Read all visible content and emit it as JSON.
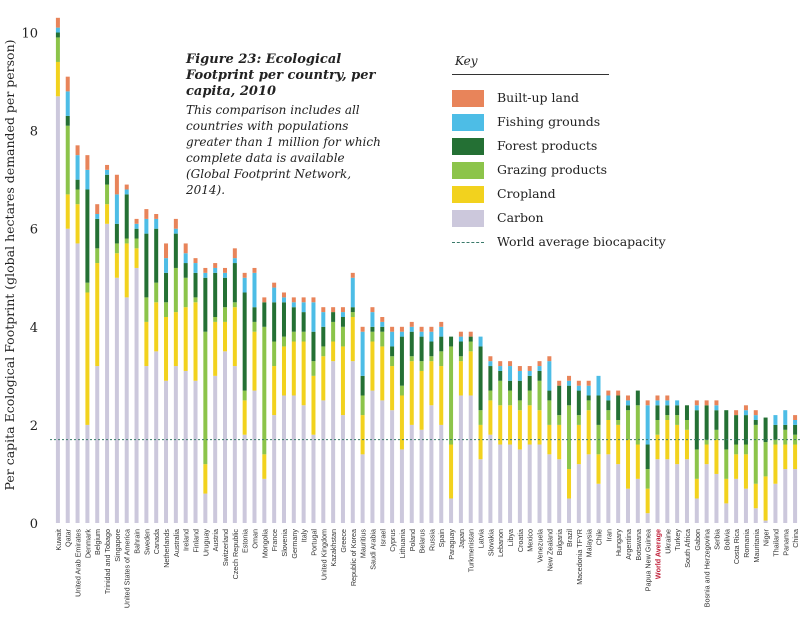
{
  "figure": {
    "title": "Figure 23: Ecological Footprint per country, per capita, 2010",
    "description": "This comparison includes all countries with populations greater than 1 million for which complete data is available (Global Footprint Network, 2014)."
  },
  "key": {
    "title": "Key",
    "items": [
      {
        "label": "Built-up land",
        "color": "#e8845a"
      },
      {
        "label": "Fishing grounds",
        "color": "#4dbde6"
      },
      {
        "label": "Forest products",
        "color": "#247034"
      },
      {
        "label": "Grazing products",
        "color": "#8cc44a"
      },
      {
        "label": "Cropland",
        "color": "#f2d21e"
      },
      {
        "label": "Carbon",
        "color": "#ccc8dc"
      }
    ],
    "line_label": "World average biocapacity",
    "line_color": "#3a7a6a"
  },
  "chart_data": {
    "type": "bar",
    "stacked": true,
    "ylabel": "Per capita Ecological Footprint (global hectares demanded per person)",
    "ylim": [
      0,
      10.5
    ],
    "yticks": [
      0,
      2,
      4,
      6,
      8,
      10
    ],
    "reference_line": {
      "label": "World average biocapacity",
      "value": 1.7
    },
    "highlight_category": "World Average",
    "highlight_color": "#c0203a",
    "categories": [
      "Kuwait",
      "Qatar",
      "United Arab Emirates",
      "Denmark",
      "Belgium",
      "Trinidad and Tobago",
      "Singapore",
      "United States of America",
      "Bahrain",
      "Sweden",
      "Canada",
      "Netherlands",
      "Australia",
      "Ireland",
      "Finland",
      "Uruguay",
      "Austria",
      "Switzerland",
      "Czech Republic",
      "Estonia",
      "Oman",
      "Mongolia",
      "France",
      "Slovenia",
      "Germany",
      "Italy",
      "Portugal",
      "United Kingdom",
      "Kazakhstan",
      "Greece",
      "Republic of Korea",
      "Mauritius",
      "Saudi Arabia",
      "Israel",
      "Cyprus",
      "Lithuania",
      "Poland",
      "Belarus",
      "Russia",
      "Spain",
      "Paraguay",
      "Japan",
      "Turkmenistan",
      "Latvia",
      "Slovakia",
      "Lebanon",
      "Libya",
      "Croatia",
      "Mexico",
      "Venezuela",
      "New Zealand",
      "Bulgaria",
      "Brazil",
      "Macedonia TFYR",
      "Malaysia",
      "Chile",
      "Iran",
      "Hungary",
      "Argentina",
      "Botswana",
      "Papua New Guinea",
      "World Average",
      "Ukraine",
      "Turkey",
      "South Africa",
      "Gabon",
      "Bosnia and Herzegovina",
      "Serbia",
      "Bolivia",
      "Costa Rica",
      "Romania",
      "Mauritania",
      "Niger",
      "Thailand",
      "Panama",
      "China"
    ],
    "series": [
      {
        "name": "Carbon",
        "values": [
          8.7,
          6.0,
          5.7,
          2.0,
          3.2,
          6.1,
          5.0,
          4.6,
          5.2,
          3.2,
          3.5,
          2.9,
          3.2,
          3.1,
          2.9,
          0.6,
          3.0,
          3.5,
          3.2,
          1.8,
          2.7,
          0.9,
          2.2,
          2.6,
          2.6,
          2.4,
          1.8,
          2.5,
          3.3,
          2.2,
          3.3,
          1.4,
          2.7,
          2.5,
          2.3,
          1.5,
          2.0,
          1.9,
          2.4,
          2.0,
          0.5,
          2.6,
          2.6,
          1.3,
          1.8,
          1.6,
          1.6,
          1.5,
          1.6,
          1.6,
          1.4,
          1.3,
          0.5,
          1.2,
          1.4,
          0.8,
          1.4,
          1.2,
          0.7,
          0.9,
          0.2,
          1.3,
          1.3,
          1.2,
          1.3,
          0.5,
          1.2,
          1.0,
          0.4,
          0.9,
          0.7,
          0.3,
          0.05,
          0.8,
          1.1,
          1.1
        ]
      },
      {
        "name": "Cropland",
        "values": [
          0.7,
          0.7,
          0.8,
          2.7,
          2.1,
          0.4,
          0.5,
          1.1,
          0.4,
          0.9,
          1.0,
          1.3,
          1.1,
          1.3,
          1.6,
          0.6,
          1.1,
          0.6,
          1.2,
          0.7,
          1.2,
          0.5,
          1.0,
          1.0,
          1.1,
          1.3,
          1.2,
          0.9,
          0.4,
          1.4,
          0.9,
          0.8,
          1.0,
          1.1,
          0.9,
          1.1,
          1.3,
          1.2,
          0.9,
          1.2,
          1.1,
          0.7,
          0.9,
          0.7,
          0.7,
          0.8,
          0.8,
          0.8,
          0.8,
          0.7,
          0.6,
          0.7,
          0.6,
          0.8,
          0.9,
          0.6,
          0.7,
          0.8,
          1.0,
          0.7,
          0.5,
          0.5,
          0.8,
          0.8,
          0.6,
          0.4,
          0.4,
          0.7,
          0.5,
          0.5,
          0.7,
          0.5,
          0.9,
          0.8,
          0.5,
          0.5
        ]
      },
      {
        "name": "Grazing products",
        "values": [
          0.5,
          1.4,
          0.3,
          0.2,
          0.3,
          0.4,
          0.2,
          0.1,
          0.2,
          0.5,
          0.4,
          0.3,
          0.9,
          0.6,
          0.1,
          2.7,
          0.1,
          0.3,
          0.1,
          0.2,
          0.2,
          2.6,
          0.5,
          0.2,
          0.2,
          0.2,
          0.3,
          0.2,
          0.4,
          0.4,
          0.1,
          0.4,
          0.2,
          0.3,
          0.2,
          0.2,
          0.1,
          0.2,
          0.1,
          0.3,
          2.0,
          0.1,
          0.2,
          0.3,
          0.2,
          0.5,
          0.3,
          0.2,
          0.3,
          0.6,
          0.5,
          0.2,
          1.3,
          0.2,
          0.2,
          0.6,
          0.2,
          0.1,
          0.6,
          0.8,
          0.4,
          0.3,
          0.1,
          0.2,
          0.2,
          0.6,
          0.1,
          0.2,
          0.6,
          0.2,
          0.2,
          1.2,
          0.7,
          0.1,
          0.3,
          0.2
        ]
      },
      {
        "name": "Forest products",
        "values": [
          0.1,
          0.2,
          0.2,
          1.9,
          0.6,
          0.2,
          0.4,
          0.9,
          0.2,
          1.3,
          1.1,
          0.6,
          0.7,
          0.3,
          0.5,
          1.1,
          0.9,
          0.6,
          0.8,
          2.0,
          0.3,
          0.5,
          0.8,
          0.7,
          0.5,
          0.4,
          0.6,
          0.4,
          0.2,
          0.2,
          0.1,
          0.4,
          0.1,
          0.1,
          0.2,
          1.0,
          0.5,
          0.5,
          0.3,
          0.3,
          0.2,
          0.3,
          0.1,
          1.3,
          0.5,
          0.2,
          0.2,
          0.4,
          0.3,
          0.2,
          0.2,
          0.6,
          0.4,
          0.5,
          0.1,
          0.6,
          0.2,
          0.5,
          0.1,
          0.3,
          0.5,
          0.3,
          0.2,
          0.2,
          0.3,
          0.8,
          0.7,
          0.4,
          0.8,
          0.6,
          0.6,
          0.1,
          0.5,
          0.3,
          0.1,
          0.2
        ]
      },
      {
        "name": "Fishing grounds",
        "values": [
          0.1,
          0.5,
          0.5,
          0.4,
          0.1,
          0.1,
          0.6,
          0.1,
          0.1,
          0.3,
          0.2,
          0.3,
          0.1,
          0.2,
          0.2,
          0.1,
          0.1,
          0.1,
          0.1,
          0.3,
          0.7,
          0.0,
          0.3,
          0.1,
          0.1,
          0.2,
          0.6,
          0.3,
          0.0,
          0.1,
          0.6,
          0.9,
          0.3,
          0.1,
          0.3,
          0.1,
          0.1,
          0.1,
          0.2,
          0.2,
          0.0,
          0.1,
          0.0,
          0.2,
          0.1,
          0.1,
          0.3,
          0.2,
          0.1,
          0.1,
          0.6,
          0.0,
          0.1,
          0.1,
          0.2,
          0.4,
          0.1,
          0.0,
          0.1,
          0.0,
          0.8,
          0.1,
          0.1,
          0.1,
          0.0,
          0.1,
          0.0,
          0.1,
          0.0,
          0.0,
          0.1,
          0.1,
          0.0,
          0.2,
          0.3,
          0.1
        ]
      },
      {
        "name": "Built-up land",
        "values": [
          0.2,
          0.3,
          0.2,
          0.3,
          0.2,
          0.1,
          0.4,
          0.1,
          0.1,
          0.2,
          0.1,
          0.3,
          0.2,
          0.2,
          0.1,
          0.1,
          0.1,
          0.1,
          0.2,
          0.1,
          0.1,
          0.1,
          0.1,
          0.1,
          0.1,
          0.1,
          0.1,
          0.1,
          0.1,
          0.1,
          0.1,
          0.1,
          0.1,
          0.1,
          0.1,
          0.1,
          0.1,
          0.1,
          0.1,
          0.1,
          0.0,
          0.1,
          0.1,
          0.0,
          0.1,
          0.1,
          0.1,
          0.1,
          0.1,
          0.1,
          0.1,
          0.1,
          0.1,
          0.1,
          0.1,
          0.0,
          0.1,
          0.1,
          0.1,
          0.0,
          0.1,
          0.1,
          0.1,
          0.0,
          0.0,
          0.1,
          0.1,
          0.1,
          0.0,
          0.1,
          0.1,
          0.1,
          0.0,
          0.0,
          0.0,
          0.1
        ]
      }
    ]
  }
}
